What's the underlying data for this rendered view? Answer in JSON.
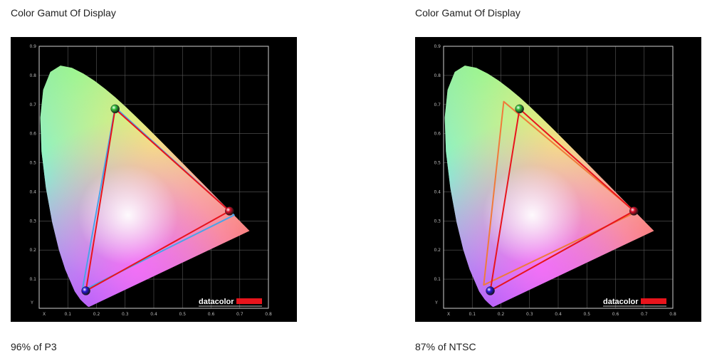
{
  "panels": [
    {
      "title": "Color Gamut Of Display",
      "caption": "96% of P3",
      "brand": "datacolor"
    },
    {
      "title": "Color Gamut Of Display",
      "caption": "87% of NTSC",
      "brand": "datacolor"
    }
  ],
  "colors": {
    "measured": "#e8141c",
    "p3_reference": "#4aa3e8",
    "ntsc_reference": "#f07a3a",
    "background": "#000000",
    "grid": "#5a5a5a",
    "brand_bar": "#e8141c"
  },
  "chart_data": [
    {
      "type": "scatter",
      "xlabel": "X",
      "ylabel": "Y",
      "xlim": [
        0,
        0.8
      ],
      "ylim": [
        0,
        0.9
      ],
      "x_ticks": [
        0.1,
        0.2,
        0.3,
        0.4,
        0.5,
        0.6,
        0.7,
        0.8
      ],
      "y_ticks": [
        0.1,
        0.2,
        0.3,
        0.4,
        0.5,
        0.6,
        0.7,
        0.8,
        0.9
      ],
      "grid": true,
      "series": [
        {
          "color": "#4aa3e8",
          "points": [
            [
              0.68,
              0.32
            ],
            [
              0.265,
              0.69
            ],
            [
              0.15,
              0.06
            ]
          ]
        },
        {
          "color": "#e8141c",
          "points": [
            [
              0.664,
              0.334
            ],
            [
              0.265,
              0.685
            ],
            [
              0.163,
              0.06
            ]
          ]
        }
      ],
      "primaries": [
        {
          "x": 0.265,
          "y": 0.685,
          "color": "#35c23a"
        },
        {
          "x": 0.664,
          "y": 0.334,
          "color": "#d8102a"
        },
        {
          "x": 0.163,
          "y": 0.06,
          "color": "#2a18d8"
        }
      ]
    },
    {
      "type": "scatter",
      "xlabel": "X",
      "ylabel": "Y",
      "xlim": [
        0,
        0.8
      ],
      "ylim": [
        0,
        0.9
      ],
      "x_ticks": [
        0.1,
        0.2,
        0.3,
        0.4,
        0.5,
        0.6,
        0.7,
        0.8
      ],
      "y_ticks": [
        0.1,
        0.2,
        0.3,
        0.4,
        0.5,
        0.6,
        0.7,
        0.8,
        0.9
      ],
      "grid": true,
      "series": [
        {
          "color": "#f07a3a",
          "points": [
            [
              0.67,
              0.33
            ],
            [
              0.21,
              0.71
            ],
            [
              0.14,
              0.08
            ]
          ]
        },
        {
          "color": "#e8141c",
          "points": [
            [
              0.664,
              0.334
            ],
            [
              0.265,
              0.685
            ],
            [
              0.163,
              0.06
            ]
          ]
        }
      ],
      "primaries": [
        {
          "x": 0.265,
          "y": 0.685,
          "color": "#35c23a"
        },
        {
          "x": 0.664,
          "y": 0.334,
          "color": "#d8102a"
        },
        {
          "x": 0.163,
          "y": 0.06,
          "color": "#2a18d8"
        }
      ]
    }
  ]
}
